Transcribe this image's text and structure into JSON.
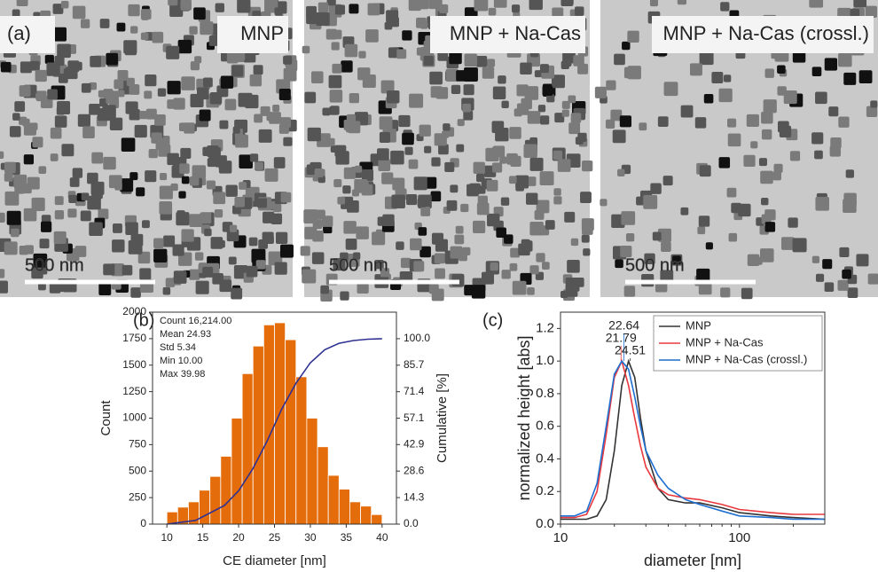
{
  "panel_a": {
    "label": "(a)",
    "scale_bar": "500 nm",
    "images": [
      "MNP",
      "MNP + Na-Cas",
      "MNP + Na-Cas (crossl.)"
    ]
  },
  "chart_data": [
    {
      "type": "histogram",
      "panel_label": "(b)",
      "x_label": "CE diameter [nm]",
      "y_label": "Count",
      "y2_label": "Cumulative [%]",
      "bins": [
        10,
        11.5,
        13,
        14.5,
        16,
        17.5,
        19,
        20.5,
        22,
        23.5,
        25,
        26.5,
        28,
        29.5,
        31,
        32.5,
        34,
        35.5,
        37,
        38.5,
        40
      ],
      "values": [
        115,
        160,
        210,
        320,
        450,
        640,
        1000,
        1420,
        1680,
        1880,
        1900,
        1740,
        1390,
        1000,
        730,
        460,
        330,
        210,
        170,
        90
      ],
      "color": "#e46c0a",
      "line": {
        "x": [
          10,
          14,
          18,
          20,
          22,
          24,
          26,
          28,
          30,
          32,
          34,
          36,
          38,
          40
        ],
        "values": [
          0,
          2,
          10,
          18,
          30,
          45,
          62,
          76,
          87,
          94,
          97.5,
          99,
          99.7,
          100
        ],
        "color": "#2e3192",
        "axis": "y2"
      },
      "xlim": [
        8,
        42
      ],
      "xticks": [
        10,
        15,
        20,
        25,
        30,
        35,
        40
      ],
      "ylim": [
        0,
        2000
      ],
      "yticks": [
        0,
        250,
        500,
        750,
        1000,
        1250,
        1500,
        1750,
        2000
      ],
      "y2lim": [
        0,
        114.3
      ],
      "y2ticks": [
        {
          "value": 0,
          "label": "0.0"
        },
        14.3,
        28.6,
        42.9,
        57.1,
        71.4,
        85.7,
        {
          "value": 100,
          "label": "100.0"
        }
      ],
      "stats": [
        "Count 16,214.00",
        "Mean 24.93",
        "Std 5.34",
        "Min 10.00",
        "Max 39.98"
      ]
    },
    {
      "type": "line",
      "panel_label": "(c)",
      "x_label": "diameter [nm]",
      "y_label": "normalized height [abs]",
      "log_x": true,
      "x": [
        10,
        12,
        14,
        16,
        18,
        20,
        22,
        24,
        26,
        28,
        30,
        35,
        40,
        50,
        60,
        80,
        100,
        150,
        200,
        300
      ],
      "series": [
        {
          "name": "MNP",
          "color": "#333333",
          "values": [
            0.03,
            0.03,
            0.03,
            0.05,
            0.15,
            0.45,
            0.85,
            1.0,
            0.9,
            0.65,
            0.45,
            0.22,
            0.15,
            0.13,
            0.13,
            0.1,
            0.07,
            0.05,
            0.04,
            0.03
          ]
        },
        {
          "name": "MNP + Na-Cas",
          "color": "#e8383d",
          "values": [
            0.04,
            0.04,
            0.06,
            0.2,
            0.55,
            0.9,
            1.0,
            0.85,
            0.65,
            0.48,
            0.35,
            0.22,
            0.18,
            0.16,
            0.15,
            0.12,
            0.09,
            0.07,
            0.06,
            0.06
          ]
        },
        {
          "name": "MNP + Na-Cas (crossl.)",
          "color": "#1f6fd1",
          "values": [
            0.05,
            0.05,
            0.08,
            0.25,
            0.6,
            0.92,
            1.0,
            0.95,
            0.78,
            0.6,
            0.45,
            0.3,
            0.22,
            0.15,
            0.12,
            0.08,
            0.05,
            0.04,
            0.03,
            0.03
          ]
        }
      ],
      "peak_labels": [
        {
          "value": 22.64,
          "color": "#1f6fd1"
        },
        {
          "value": 21.79,
          "color": "#e8383d"
        },
        {
          "value": 24.51,
          "color": "#333333"
        }
      ],
      "xlim": [
        10,
        300
      ],
      "xticks": [
        10,
        100
      ],
      "ylim": [
        0,
        1.3
      ],
      "yticks": [
        {
          "value": 0,
          "label": "0.0"
        },
        0.2,
        0.4,
        0.6,
        0.8,
        {
          "value": 1,
          "label": "1.0"
        },
        1.2
      ],
      "legend": "upper right"
    }
  ]
}
